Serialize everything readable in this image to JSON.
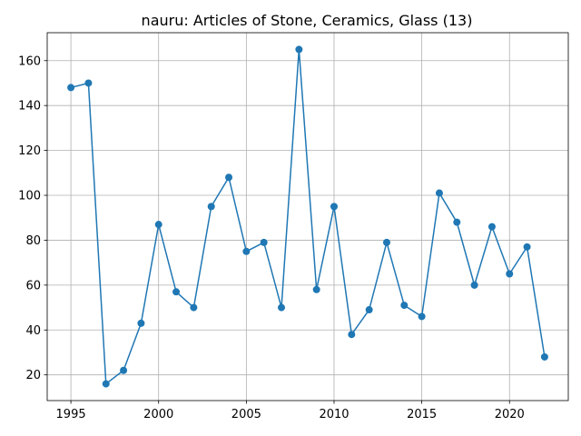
{
  "chart_data": {
    "type": "line",
    "title": "nauru: Articles of Stone, Ceramics, Glass (13)",
    "xlabel": "",
    "ylabel": "",
    "x": [
      1995,
      1996,
      1997,
      1998,
      1999,
      2000,
      2001,
      2002,
      2003,
      2004,
      2005,
      2006,
      2007,
      2008,
      2009,
      2010,
      2011,
      2012,
      2013,
      2014,
      2015,
      2016,
      2017,
      2018,
      2019,
      2020,
      2021,
      2022
    ],
    "series": [
      {
        "values": [
          148,
          150,
          16,
          22,
          43,
          87,
          57,
          50,
          95,
          108,
          75,
          79,
          50,
          165,
          58,
          95,
          38,
          49,
          79,
          51,
          46,
          101,
          88,
          60,
          86,
          65,
          77,
          28
        ],
        "color": "#1f77b4",
        "marker": "circle"
      }
    ],
    "xlim": [
      1993.65,
      2023.35
    ],
    "ylim": [
      8.55,
      172.45
    ],
    "x_ticks": [
      1995,
      2000,
      2005,
      2010,
      2015,
      2020
    ],
    "y_ticks": [
      20,
      40,
      60,
      80,
      100,
      120,
      140,
      160
    ],
    "grid": true,
    "legend": "none"
  }
}
